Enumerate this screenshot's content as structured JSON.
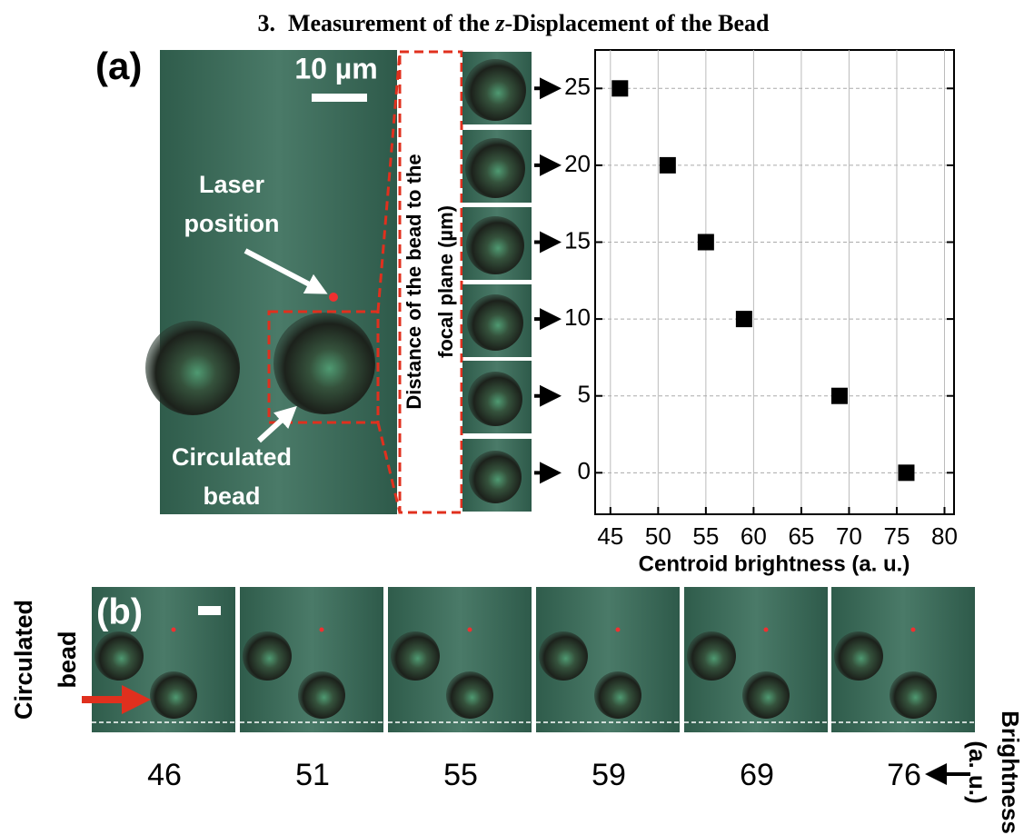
{
  "heading": {
    "number": "3.",
    "before": "Measurement of the ",
    "italic": "z",
    "after": "-Displacement of the Bead"
  },
  "panel_a": {
    "label": "(a)",
    "scale_bar": "10 µm",
    "laser": [
      "Laser",
      "position"
    ],
    "bead": [
      "Circulated",
      "bead"
    ]
  },
  "chart_data": {
    "type": "scatter",
    "xlabel": "Centroid brightness (a. u.)",
    "ylabel": [
      "Distance of the bead to the",
      "focal plane (µm)"
    ],
    "x": [
      46,
      51,
      55,
      59,
      69,
      76
    ],
    "values": [
      25,
      20,
      15,
      10,
      5,
      0
    ],
    "color": "#000000",
    "xlim": [
      43.4,
      81
    ],
    "ylim": [
      -2.7,
      27.5
    ],
    "xticks": [
      45,
      50,
      55,
      60,
      65,
      70,
      75,
      80
    ],
    "yticks": [
      0,
      5,
      10,
      15,
      20,
      25
    ],
    "grid": true
  },
  "panel_b": {
    "label": "(b)",
    "side": [
      "Circulated",
      "bead"
    ],
    "brightness": [
      46,
      51,
      55,
      59,
      69,
      76
    ],
    "axis": [
      "Brightness",
      "(a. u.)"
    ]
  }
}
